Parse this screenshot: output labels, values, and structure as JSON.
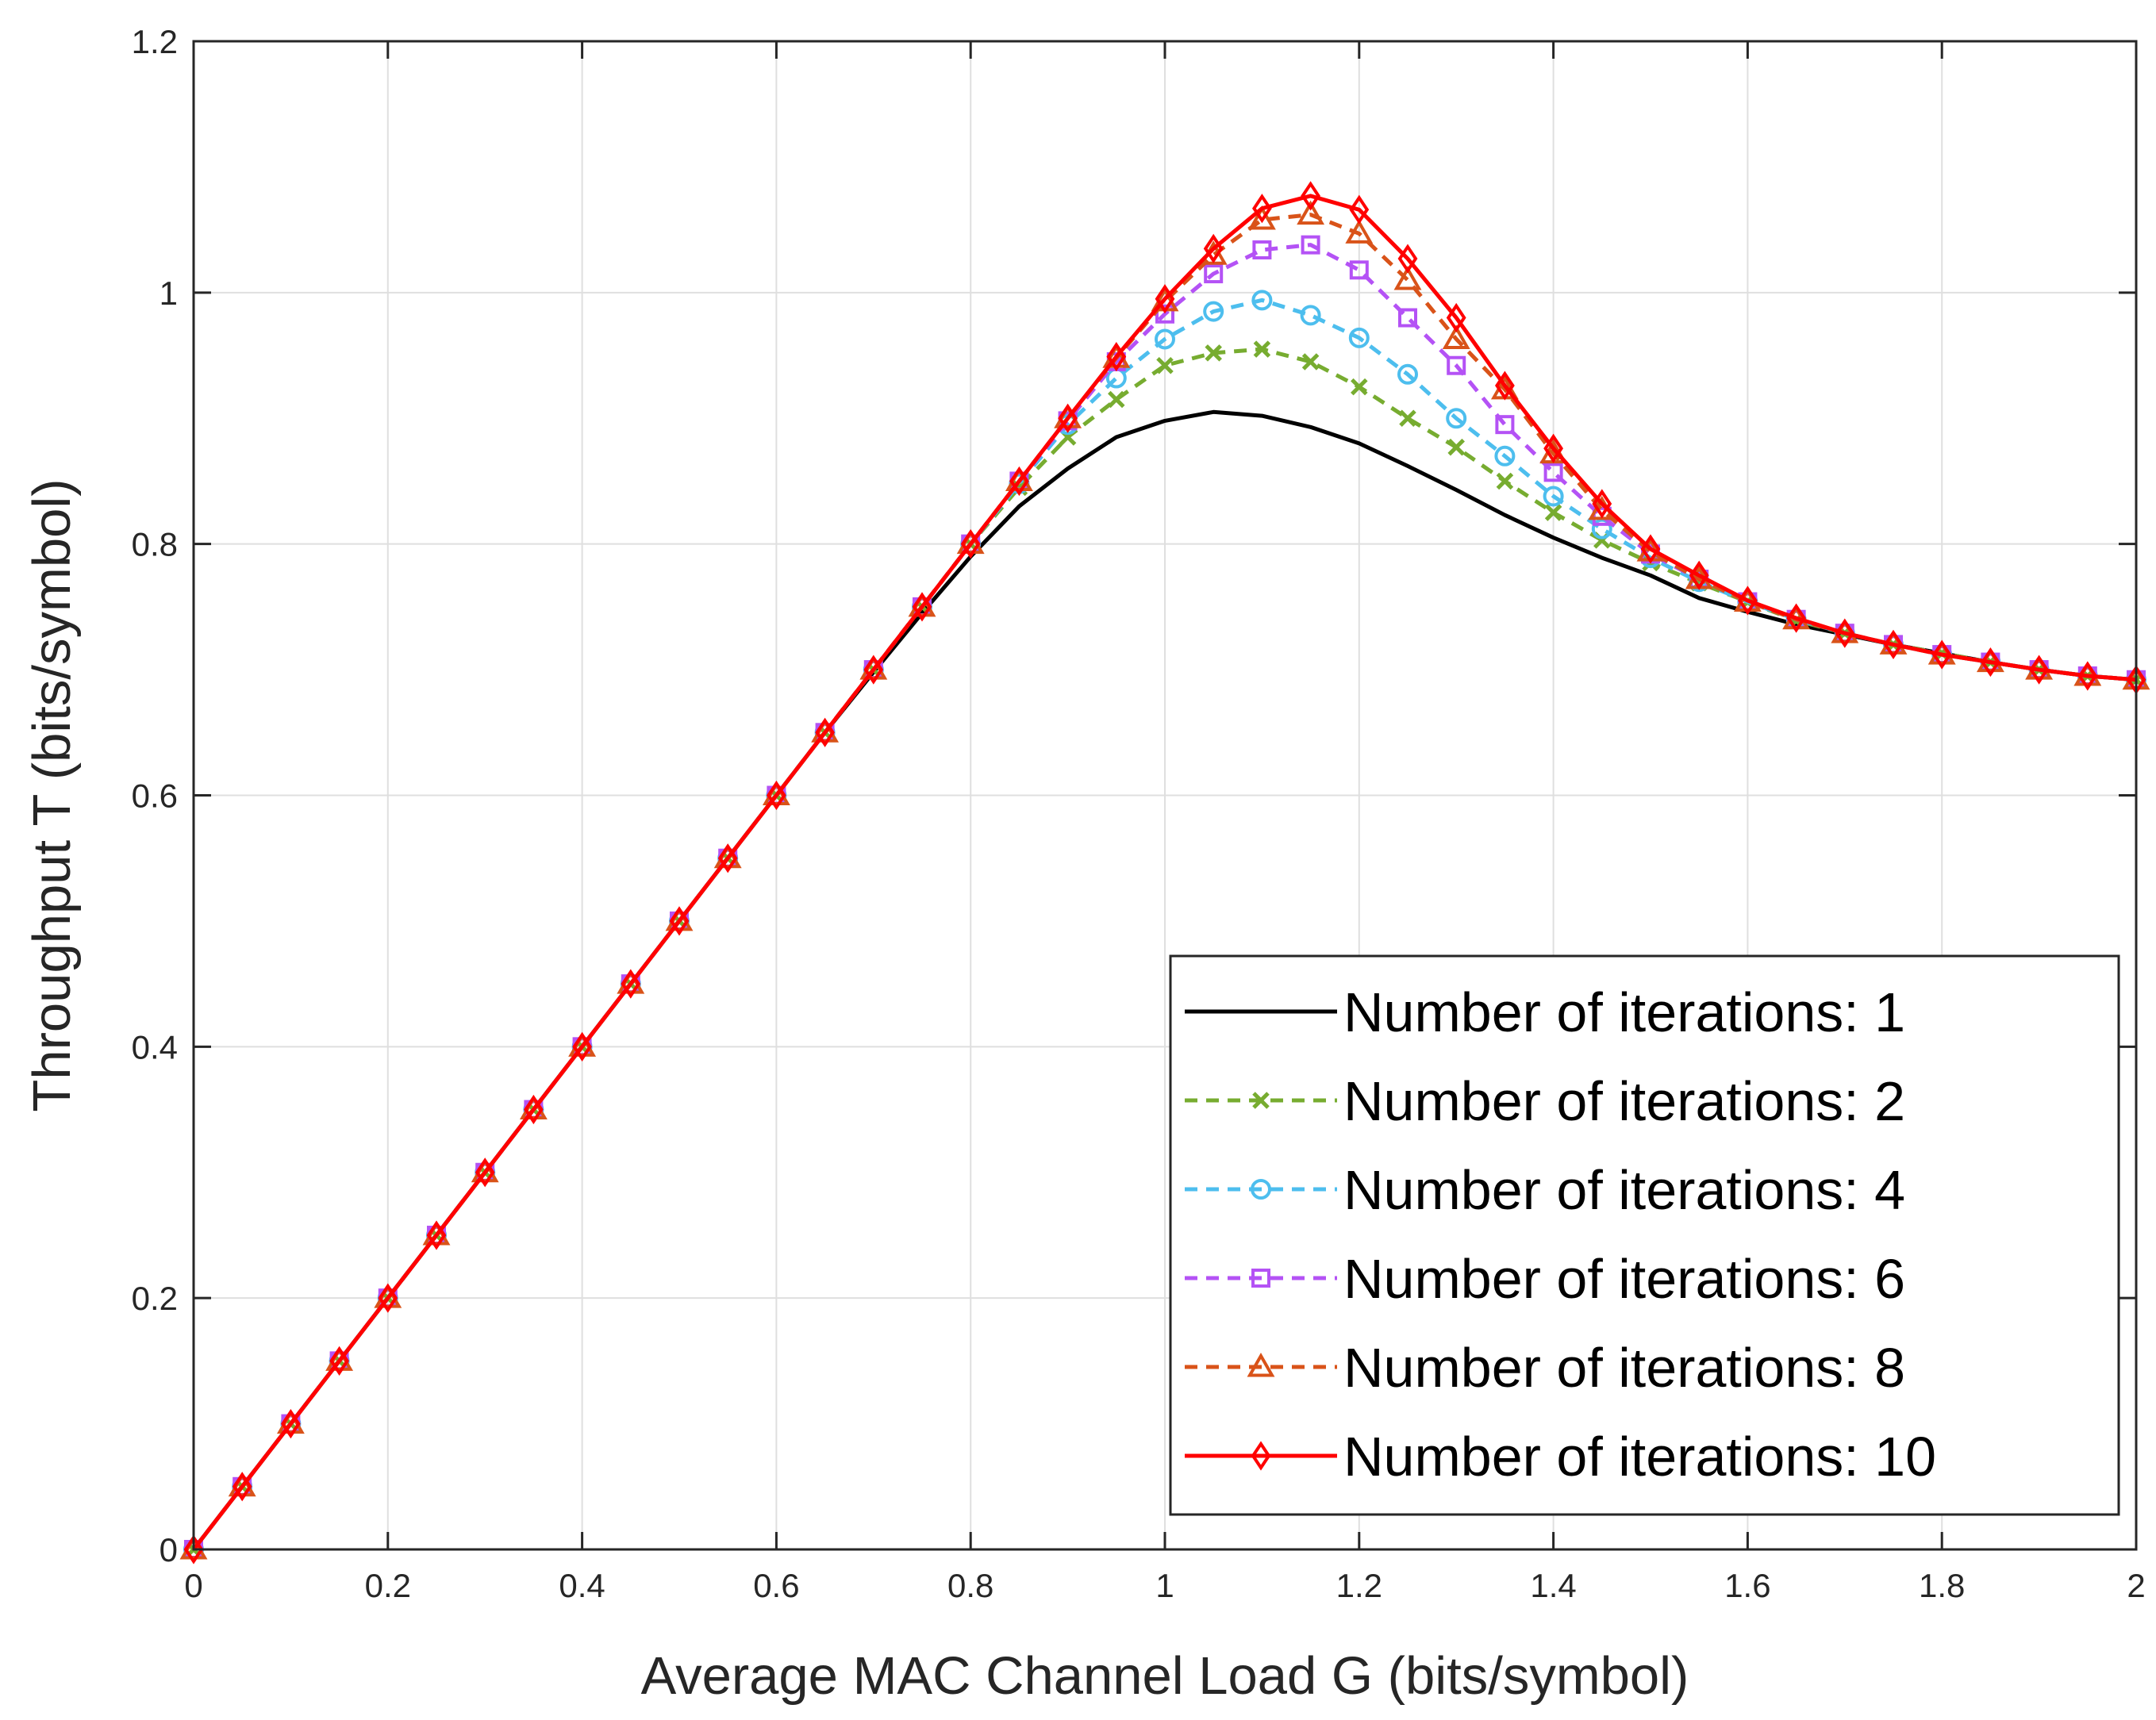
{
  "chart_data": {
    "type": "line",
    "title": "",
    "xlabel": "Average MAC Channel Load G (bits/symbol)",
    "ylabel": "Throughput T (bits/symbol)",
    "xlim": [
      0,
      2
    ],
    "ylim": [
      0,
      1.2
    ],
    "xticks": [
      0,
      0.2,
      0.4,
      0.6,
      0.8,
      1,
      1.2,
      1.4,
      1.6,
      1.8,
      2
    ],
    "xtick_labels": [
      "0",
      "0.2",
      "0.4",
      "0.6",
      "0.8",
      "1",
      "1.2",
      "1.4",
      "1.6",
      "1.8",
      "2"
    ],
    "yticks": [
      0,
      0.2,
      0.4,
      0.6,
      0.8,
      1,
      1.2
    ],
    "ytick_labels": [
      "0",
      "0.2",
      "0.4",
      "0.6",
      "0.8",
      "1",
      "1.2"
    ],
    "grid": true,
    "legend_position": "bottom-right",
    "x": [
      0,
      0.05,
      0.1,
      0.15,
      0.2,
      0.25,
      0.3,
      0.35,
      0.4,
      0.45,
      0.5,
      0.55,
      0.6,
      0.65,
      0.7,
      0.75,
      0.8,
      0.85,
      0.9,
      0.95,
      1,
      1.05,
      1.1,
      1.15,
      1.2,
      1.25,
      1.3,
      1.35,
      1.4,
      1.45,
      1.5,
      1.55,
      1.6,
      1.65,
      1.7,
      1.75,
      1.8,
      1.85,
      1.9,
      1.95,
      2
    ],
    "series": [
      {
        "name": "Number of iterations: 1",
        "color": "#000000",
        "dash": "solid",
        "marker": "none",
        "values": [
          0,
          0.05,
          0.1,
          0.15,
          0.2,
          0.25,
          0.3,
          0.35,
          0.4,
          0.45,
          0.5,
          0.55,
          0.6,
          0.65,
          0.698,
          0.745,
          0.79,
          0.83,
          0.86,
          0.885,
          0.898,
          0.905,
          0.902,
          0.893,
          0.88,
          0.862,
          0.843,
          0.823,
          0.805,
          0.789,
          0.775,
          0.757,
          0.746,
          0.736,
          0.728,
          0.72,
          0.713,
          0.706,
          0.7,
          0.695,
          0.692
        ]
      },
      {
        "name": "Number of iterations: 2",
        "color": "#77AC30",
        "dash": "dashed",
        "marker": "x",
        "values": [
          0,
          0.05,
          0.1,
          0.15,
          0.2,
          0.25,
          0.3,
          0.35,
          0.4,
          0.45,
          0.5,
          0.55,
          0.6,
          0.65,
          0.7,
          0.75,
          0.8,
          0.845,
          0.885,
          0.915,
          0.942,
          0.952,
          0.955,
          0.945,
          0.925,
          0.9,
          0.877,
          0.85,
          0.825,
          0.803,
          0.785,
          0.769,
          0.754,
          0.739,
          0.729,
          0.72,
          0.713,
          0.706,
          0.7,
          0.695,
          0.692
        ]
      },
      {
        "name": "Number of iterations: 4",
        "color": "#4DBEEE",
        "dash": "dashed",
        "marker": "circle",
        "values": [
          0,
          0.05,
          0.1,
          0.15,
          0.2,
          0.25,
          0.3,
          0.35,
          0.4,
          0.45,
          0.5,
          0.55,
          0.6,
          0.65,
          0.7,
          0.75,
          0.8,
          0.848,
          0.895,
          0.932,
          0.963,
          0.985,
          0.994,
          0.982,
          0.964,
          0.935,
          0.9,
          0.87,
          0.838,
          0.812,
          0.789,
          0.77,
          0.754,
          0.74,
          0.729,
          0.72,
          0.712,
          0.706,
          0.7,
          0.695,
          0.692
        ]
      },
      {
        "name": "Number of iterations: 6",
        "color": "#B452F5",
        "dash": "dashed",
        "marker": "square",
        "values": [
          0,
          0.05,
          0.1,
          0.15,
          0.2,
          0.25,
          0.3,
          0.35,
          0.4,
          0.45,
          0.5,
          0.55,
          0.6,
          0.65,
          0.7,
          0.75,
          0.8,
          0.85,
          0.898,
          0.945,
          0.983,
          1.015,
          1.034,
          1.038,
          1.018,
          0.98,
          0.942,
          0.895,
          0.857,
          0.822,
          0.792,
          0.772,
          0.754,
          0.74,
          0.729,
          0.72,
          0.712,
          0.706,
          0.7,
          0.695,
          0.692
        ]
      },
      {
        "name": "Number of iterations: 8",
        "color": "#D95319",
        "dash": "dashed",
        "marker": "triangle",
        "values": [
          0,
          0.05,
          0.1,
          0.15,
          0.2,
          0.25,
          0.3,
          0.35,
          0.4,
          0.45,
          0.5,
          0.55,
          0.6,
          0.65,
          0.7,
          0.75,
          0.8,
          0.85,
          0.9,
          0.948,
          0.993,
          1.03,
          1.058,
          1.062,
          1.047,
          1.01,
          0.963,
          0.923,
          0.872,
          0.827,
          0.794,
          0.772,
          0.754,
          0.74,
          0.729,
          0.72,
          0.712,
          0.706,
          0.7,
          0.695,
          0.692
        ]
      },
      {
        "name": "Number of iterations: 10",
        "color": "#FF0000",
        "dash": "solid",
        "marker": "diamond",
        "values": [
          0,
          0.05,
          0.1,
          0.15,
          0.2,
          0.25,
          0.3,
          0.35,
          0.4,
          0.45,
          0.5,
          0.55,
          0.6,
          0.65,
          0.7,
          0.75,
          0.8,
          0.85,
          0.9,
          0.949,
          0.995,
          1.035,
          1.067,
          1.077,
          1.066,
          1.027,
          0.98,
          0.926,
          0.876,
          0.832,
          0.796,
          0.775,
          0.755,
          0.741,
          0.729,
          0.72,
          0.712,
          0.706,
          0.7,
          0.695,
          0.692
        ]
      }
    ]
  }
}
